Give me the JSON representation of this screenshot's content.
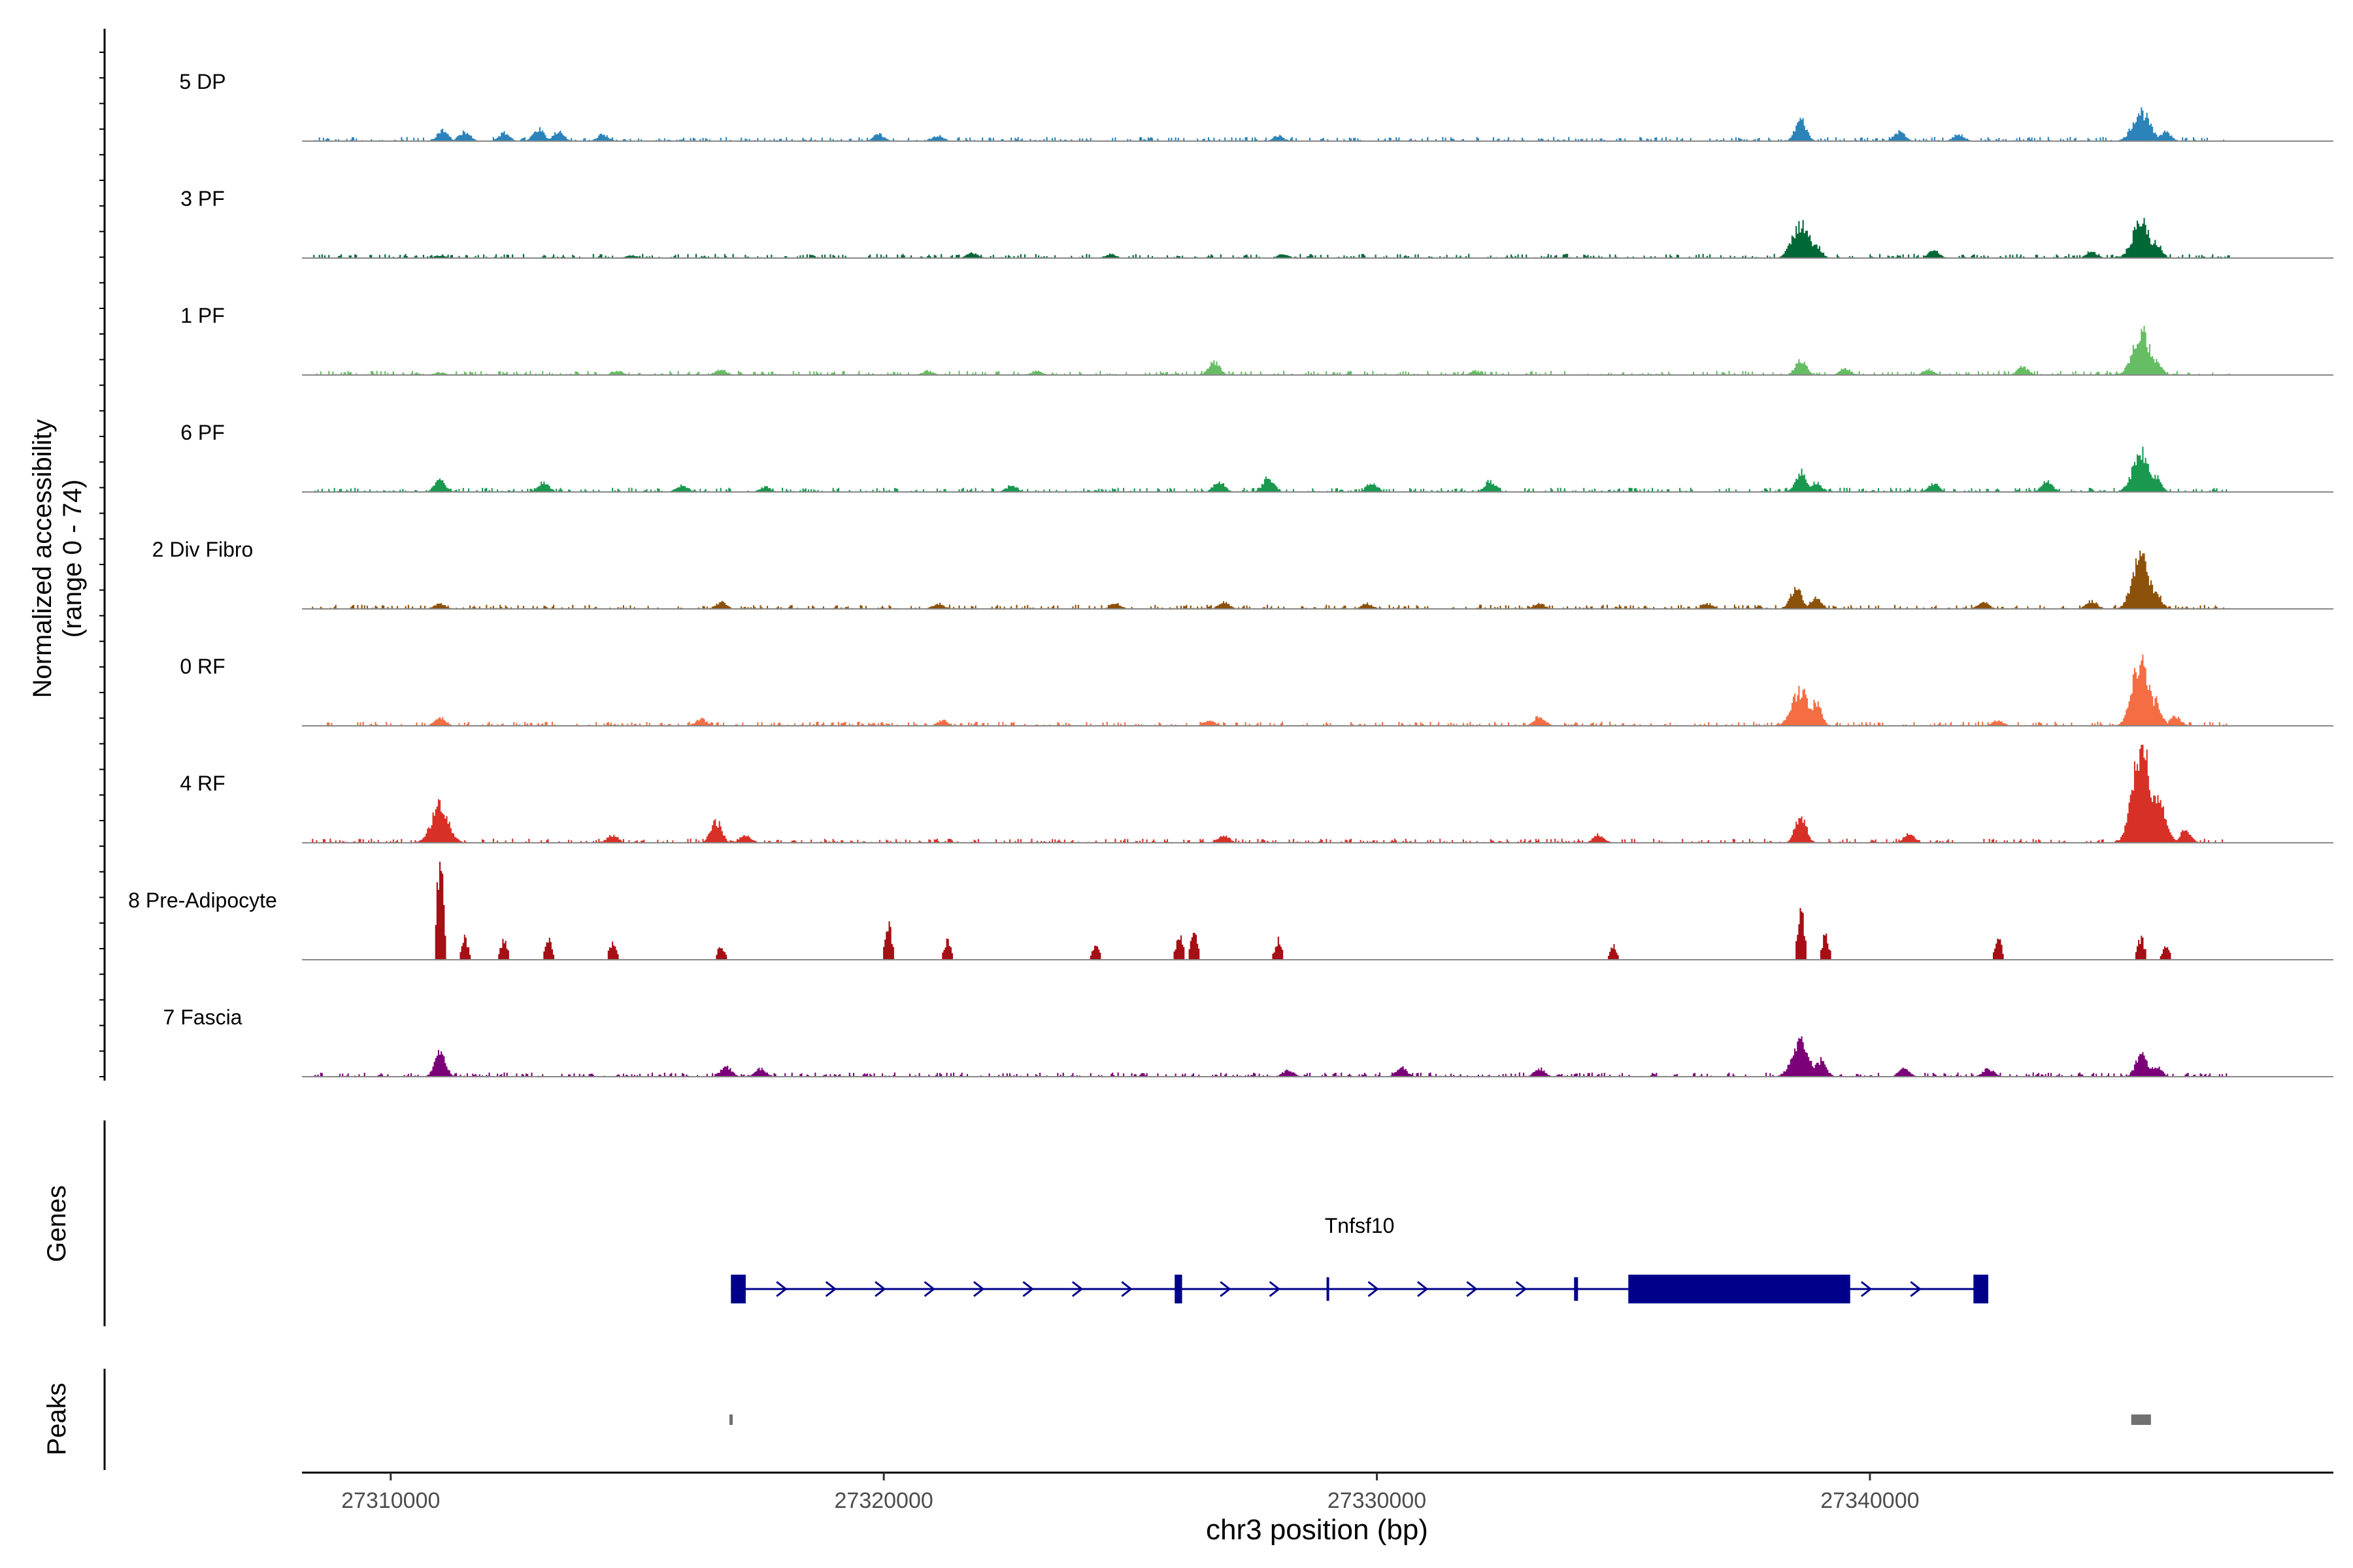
{
  "chart_data": {
    "type": "area",
    "title": "",
    "ylabel_line1": "Normalized accessibility",
    "ylabel_line2": "(range 0 - 74)",
    "xlabel": "chr3 position (bp)",
    "xlim": [
      27308200,
      27349400
    ],
    "ylim": [
      0,
      74
    ],
    "x_ticks": [
      27310000,
      27320000,
      27330000,
      27340000
    ],
    "x_tick_labels": [
      "27310000",
      "27320000",
      "27330000",
      "27340000"
    ],
    "series": [
      {
        "name": "5 DP",
        "color": "#2b83ba",
        "peaks": [
          [
            27311050,
            8
          ],
          [
            27311500,
            7
          ],
          [
            27312300,
            6
          ],
          [
            27313000,
            9
          ],
          [
            27313400,
            7
          ],
          [
            27314300,
            5
          ],
          [
            27319900,
            5
          ],
          [
            27321100,
            4
          ],
          [
            27328000,
            4
          ],
          [
            27338600,
            16
          ],
          [
            27340600,
            7
          ],
          [
            27341800,
            5
          ],
          [
            27345500,
            22
          ],
          [
            27346000,
            7
          ]
        ]
      },
      {
        "name": "3 PF",
        "color": "#006837",
        "peaks": [
          [
            27311000,
            2
          ],
          [
            27314900,
            2
          ],
          [
            27321800,
            4
          ],
          [
            27324600,
            3
          ],
          [
            27328100,
            3
          ],
          [
            27338600,
            25
          ],
          [
            27338900,
            10
          ],
          [
            27341300,
            6
          ],
          [
            27344500,
            5
          ],
          [
            27345500,
            26
          ],
          [
            27345800,
            12
          ]
        ]
      },
      {
        "name": "1 PF",
        "color": "#66bd63",
        "peaks": [
          [
            27311000,
            2
          ],
          [
            27314600,
            3
          ],
          [
            27316700,
            4
          ],
          [
            27320900,
            3
          ],
          [
            27323100,
            3
          ],
          [
            27326700,
            10
          ],
          [
            27332000,
            3
          ],
          [
            27338600,
            11
          ],
          [
            27339500,
            5
          ],
          [
            27341200,
            4
          ],
          [
            27343100,
            6
          ],
          [
            27345500,
            32
          ],
          [
            27345800,
            12
          ]
        ]
      },
      {
        "name": "6 PF",
        "color": "#1a9850",
        "peaks": [
          [
            27311000,
            9
          ],
          [
            27313100,
            7
          ],
          [
            27315900,
            5
          ],
          [
            27317600,
            4
          ],
          [
            27322600,
            5
          ],
          [
            27326800,
            8
          ],
          [
            27327800,
            11
          ],
          [
            27329900,
            7
          ],
          [
            27332300,
            8
          ],
          [
            27338600,
            15
          ],
          [
            27338900,
            7
          ],
          [
            27341300,
            6
          ],
          [
            27343600,
            8
          ],
          [
            27345500,
            28
          ],
          [
            27345800,
            11
          ]
        ]
      },
      {
        "name": "2 Div Fibro",
        "color": "#8c510a",
        "peaks": [
          [
            27311000,
            4
          ],
          [
            27316700,
            5
          ],
          [
            27321100,
            4
          ],
          [
            27324700,
            4
          ],
          [
            27326900,
            5
          ],
          [
            27329800,
            4
          ],
          [
            27333300,
            4
          ],
          [
            27336700,
            4
          ],
          [
            27338500,
            16
          ],
          [
            27338900,
            8
          ],
          [
            27342300,
            5
          ],
          [
            27344500,
            6
          ],
          [
            27345500,
            38
          ],
          [
            27345800,
            12
          ]
        ]
      },
      {
        "name": "0 RF",
        "color": "#f46d43",
        "peaks": [
          [
            27311000,
            6
          ],
          [
            27316300,
            5
          ],
          [
            27321200,
            4
          ],
          [
            27326600,
            4
          ],
          [
            27333300,
            7
          ],
          [
            27338600,
            26
          ],
          [
            27338900,
            17
          ],
          [
            27342600,
            4
          ],
          [
            27345500,
            51
          ],
          [
            27345800,
            19
          ],
          [
            27346200,
            7
          ]
        ]
      },
      {
        "name": "4 RF",
        "color": "#d73027",
        "peaks": [
          [
            27311000,
            27
          ],
          [
            27314500,
            6
          ],
          [
            27316600,
            16
          ],
          [
            27317200,
            6
          ],
          [
            27326900,
            6
          ],
          [
            27334500,
            6
          ],
          [
            27338600,
            20
          ],
          [
            27340800,
            7
          ],
          [
            27345500,
            74
          ],
          [
            27345800,
            33
          ],
          [
            27346400,
            9
          ]
        ]
      },
      {
        "name": "8 Pre-Adipocyte",
        "color": "#a50f15",
        "peaks": [
          [
            27311000,
            72
          ],
          [
            27311500,
            16
          ],
          [
            27312300,
            14
          ],
          [
            27313200,
            14
          ],
          [
            27314500,
            12
          ],
          [
            27316700,
            10
          ],
          [
            27320100,
            24
          ],
          [
            27321300,
            14
          ],
          [
            27324300,
            10
          ],
          [
            27326000,
            18
          ],
          [
            27326300,
            22
          ],
          [
            27328000,
            14
          ],
          [
            27334800,
            10
          ],
          [
            27338600,
            36
          ],
          [
            27339100,
            18
          ],
          [
            27342600,
            16
          ],
          [
            27345500,
            16
          ],
          [
            27346000,
            10
          ]
        ]
      },
      {
        "name": "7 Fascia",
        "color": "#7a0177",
        "peaks": [
          [
            27311000,
            18
          ],
          [
            27316800,
            8
          ],
          [
            27317500,
            6
          ],
          [
            27328200,
            5
          ],
          [
            27330500,
            7
          ],
          [
            27333300,
            6
          ],
          [
            27338600,
            26
          ],
          [
            27339000,
            12
          ],
          [
            27340700,
            6
          ],
          [
            27342400,
            6
          ],
          [
            27345500,
            18
          ],
          [
            27345800,
            8
          ]
        ]
      }
    ],
    "genes_label": "Genes",
    "gene": {
      "name": "Tnfsf10",
      "color": "#00008b",
      "start": 27316900,
      "end": 27342400,
      "strand": "+",
      "exons": [
        [
          27316900,
          27317200
        ],
        [
          27325900,
          27326050
        ],
        [
          27328980,
          27329020
        ],
        [
          27334000,
          27334080
        ],
        [
          27335100,
          27339600
        ],
        [
          27342100,
          27342400
        ]
      ]
    },
    "peaks_label": "Peaks",
    "peak_regions": [
      [
        27316870,
        27316930
      ],
      [
        27345300,
        27345700
      ]
    ],
    "peak_color": "#707070"
  }
}
